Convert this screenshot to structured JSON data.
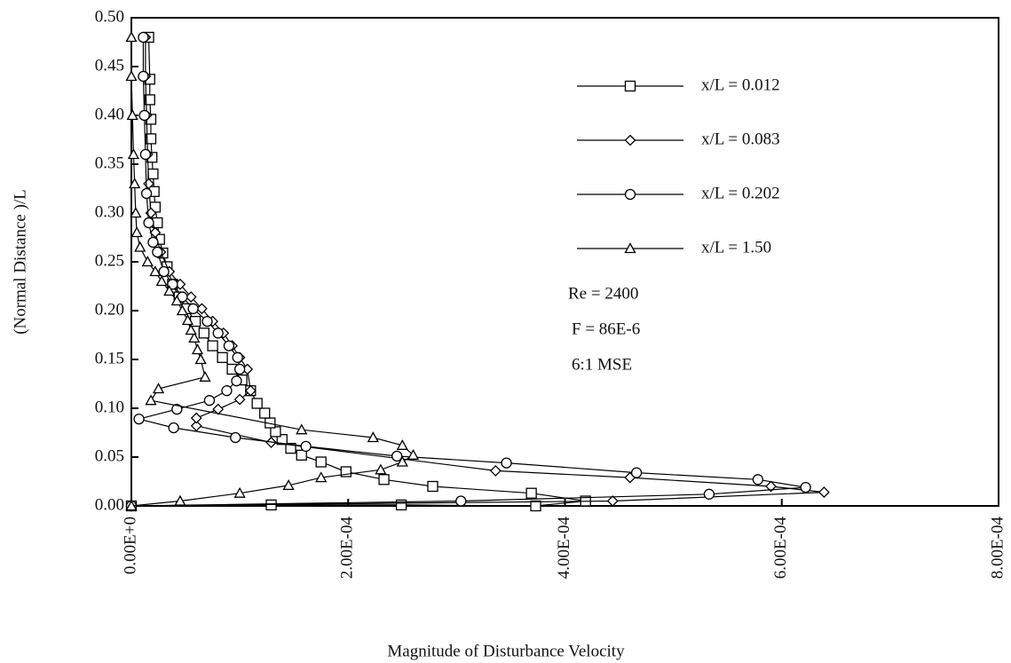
{
  "chart_data": {
    "type": "line",
    "xlabel": "Magnitude of Disturbance Velocity",
    "ylabel": "(Normal Distance )/L",
    "annotations": [
      "Re = 2400",
      "F = 86E-6",
      "6:1 MSE"
    ],
    "xlim": [
      0,
      0.0008
    ],
    "xticks": [
      {
        "value": 0,
        "label": "0.00E+0"
      },
      {
        "value": 0.0002,
        "label": "2.00E-04"
      },
      {
        "value": 0.0004,
        "label": "4.00E-04"
      },
      {
        "value": 0.0006,
        "label": "6.00E-04"
      },
      {
        "value": 0.0008,
        "label": "8.00E-04"
      }
    ],
    "ylim": [
      0,
      0.5
    ],
    "yticks": [
      {
        "value": 0,
        "label": "0.00"
      },
      0.05,
      {
        "value": 0.1,
        "label": "0.10"
      },
      0.15,
      {
        "value": 0.2,
        "label": "0.20"
      },
      0.25,
      {
        "value": 0.3,
        "label": "0.30"
      },
      0.35,
      {
        "value": 0.4,
        "label": "0.40"
      },
      0.45,
      {
        "value": 0.5,
        "label": "0.50"
      }
    ],
    "series": [
      {
        "name": "x/L = 0.012",
        "color": "#000000",
        "marker": "square",
        "x": [
          0,
          0.000129,
          0.000249,
          0.000373,
          0.000419,
          0.000369,
          0.000278,
          0.000233,
          0.000198,
          0.000175,
          0.000157,
          0.000147,
          0.000139,
          0.000133,
          0.000128,
          0.000123,
          0.000116,
          0.00011,
          0.000102,
          9.3e-05,
          8.4e-05,
          7.5e-05,
          6.7e-05,
          5.9e-05,
          5.1e-05,
          4.4e-05,
          3.8e-05,
          3.3e-05,
          2.9e-05,
          2.6e-05,
          2.4e-05,
          2.2e-05,
          2.1e-05,
          2e-05,
          1.9e-05,
          1.8e-05,
          1.8e-05,
          1.7e-05,
          1.7e-05,
          1.6e-05
        ],
        "values": [
          0,
          0.001,
          0.001,
          0,
          0.005,
          0.013,
          0.02,
          0.027,
          0.035,
          0.045,
          0.052,
          0.059,
          0.068,
          0.076,
          0.085,
          0.095,
          0.105,
          0.118,
          0.129,
          0.14,
          0.152,
          0.164,
          0.177,
          0.189,
          0.202,
          0.214,
          0.227,
          0.245,
          0.259,
          0.273,
          0.29,
          0.306,
          0.322,
          0.34,
          0.357,
          0.376,
          0.396,
          0.416,
          0.437,
          0.48
        ]
      },
      {
        "name": "x/L = 0.083",
        "color": "#000000",
        "marker": "diamond",
        "x": [
          0,
          0.000444,
          0.000639,
          0.00059,
          0.00046,
          0.000336,
          0.000129,
          6e-05,
          6e-05,
          8e-05,
          0.0001,
          0.00011,
          0.000107,
          0.0001,
          9.3e-05,
          8.5e-05,
          7.5e-05,
          6.5e-05,
          5.5e-05,
          4.5e-05,
          3.5e-05,
          2.7e-05,
          2.2e-05,
          1.8e-05,
          1.6e-05,
          1.5e-05,
          1.4e-05,
          1.3e-05,
          1.3e-05
        ],
        "values": [
          0,
          0.005,
          0.014,
          0.02,
          0.029,
          0.036,
          0.065,
          0.082,
          0.09,
          0.099,
          0.109,
          0.118,
          0.14,
          0.152,
          0.164,
          0.177,
          0.189,
          0.202,
          0.214,
          0.227,
          0.24,
          0.26,
          0.28,
          0.3,
          0.33,
          0.36,
          0.4,
          0.44,
          0.48
        ]
      },
      {
        "name": "x/L = 0.202",
        "color": "#000000",
        "marker": "circle",
        "x": [
          0,
          0.000304,
          0.000533,
          0.000622,
          0.000578,
          0.000466,
          0.000346,
          0.000245,
          0.000161,
          9.6e-05,
          3.9e-05,
          7e-06,
          4.2e-05,
          7.2e-05,
          8.8e-05,
          9.7e-05,
          0.0001,
          9.8e-05,
          9e-05,
          8e-05,
          7e-05,
          5.7e-05,
          4.7e-05,
          3.8e-05,
          3e-05,
          2.4e-05,
          2e-05,
          1.6e-05,
          1.4e-05,
          1.3e-05,
          1.2e-05,
          1.1e-05,
          1.1e-05
        ],
        "values": [
          0,
          0.005,
          0.012,
          0.019,
          0.027,
          0.034,
          0.044,
          0.051,
          0.061,
          0.07,
          0.08,
          0.089,
          0.099,
          0.108,
          0.118,
          0.128,
          0.14,
          0.152,
          0.164,
          0.177,
          0.189,
          0.202,
          0.214,
          0.227,
          0.24,
          0.26,
          0.27,
          0.29,
          0.32,
          0.36,
          0.4,
          0.44,
          0.48
        ]
      },
      {
        "name": "x/L = 1.50",
        "color": "#000000",
        "marker": "triangle",
        "x": [
          0,
          4.5e-05,
          0.0001,
          0.000145,
          0.000175,
          0.00023,
          0.00025,
          0.00026,
          0.00025,
          0.000223,
          0.000157,
          1.8e-05,
          2.5e-05,
          6.8e-05,
          6.4e-05,
          6.1e-05,
          5.8e-05,
          5.5e-05,
          5.2e-05,
          4.7e-05,
          4.2e-05,
          3.5e-05,
          2.8e-05,
          2.2e-05,
          1.5e-05,
          8e-06,
          5e-06,
          4e-06,
          3e-06,
          2e-06,
          1e-06,
          0,
          0
        ],
        "values": [
          0,
          0.005,
          0.013,
          0.021,
          0.029,
          0.037,
          0.045,
          0.052,
          0.062,
          0.07,
          0.078,
          0.108,
          0.12,
          0.132,
          0.15,
          0.16,
          0.172,
          0.18,
          0.19,
          0.2,
          0.21,
          0.22,
          0.23,
          0.24,
          0.25,
          0.265,
          0.28,
          0.3,
          0.33,
          0.36,
          0.4,
          0.44,
          0.48
        ]
      }
    ]
  }
}
